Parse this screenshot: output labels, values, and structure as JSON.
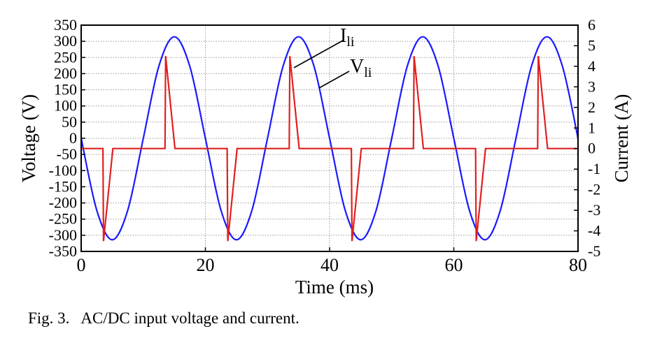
{
  "chart_data": {
    "type": "line",
    "xlabel": "Time (ms)",
    "ylabel_left": "Voltage (V)",
    "ylabel_right": "Current (A)",
    "xlim": [
      0,
      80
    ],
    "ylim_left": [
      -350,
      350
    ],
    "ylim_right": [
      -5,
      6
    ],
    "grid": true,
    "x_ticks": [
      "0",
      "20",
      "40",
      "60",
      "80"
    ],
    "y_left_ticks": [
      "350",
      "300",
      "250",
      "200",
      "150",
      "100",
      "50",
      "0",
      "-50",
      "-100",
      "-150",
      "-200",
      "-250",
      "-300",
      "-350"
    ],
    "y_right_ticks": [
      "6",
      "5",
      "4",
      "3",
      "2",
      "1",
      "0",
      "-1",
      "-2",
      "-3",
      "-4",
      "-5"
    ],
    "series": [
      {
        "name": "Vli",
        "axis": "left",
        "color": "#1a1aff",
        "x": [
          0,
          2.5,
          5,
          7.5,
          10,
          12.5,
          15,
          17.5,
          20,
          22.5,
          25,
          27.5,
          30,
          32.5,
          35,
          37.5,
          40,
          42.5,
          45,
          47.5,
          50,
          52.5,
          55,
          57.5,
          60,
          62.5,
          65,
          67.5,
          70,
          72.5,
          75,
          77.5,
          80
        ],
        "values": [
          0,
          -222,
          -314,
          -222,
          0,
          222,
          314,
          222,
          0,
          -222,
          -314,
          -222,
          0,
          222,
          314,
          222,
          0,
          -222,
          -314,
          -222,
          0,
          222,
          314,
          222,
          0,
          -222,
          -314,
          -222,
          0,
          222,
          314,
          222,
          0
        ]
      },
      {
        "name": "Ili",
        "axis": "right",
        "color": "#e02020",
        "x": [
          0,
          3.5,
          3.6,
          5.1,
          13.5,
          13.6,
          15.1,
          23.5,
          23.6,
          25.1,
          33.5,
          33.6,
          35.1,
          43.5,
          43.6,
          45.1,
          53.5,
          53.6,
          55.1,
          63.5,
          63.6,
          65.1,
          73.5,
          73.6,
          75.1,
          80
        ],
        "values": [
          0,
          0,
          -4.5,
          0,
          0,
          4.5,
          0,
          0,
          -4.5,
          0,
          0,
          4.5,
          0,
          0,
          -4.5,
          0,
          0,
          4.5,
          0,
          0,
          -4.5,
          0,
          0,
          4.5,
          0,
          0
        ]
      }
    ],
    "annotations": [
      {
        "label": "I",
        "subscript": "li",
        "series": "Ili"
      },
      {
        "label": "V",
        "subscript": "li",
        "series": "Vli"
      }
    ]
  },
  "caption": "Fig. 3.   AC/DC input voltage and current."
}
